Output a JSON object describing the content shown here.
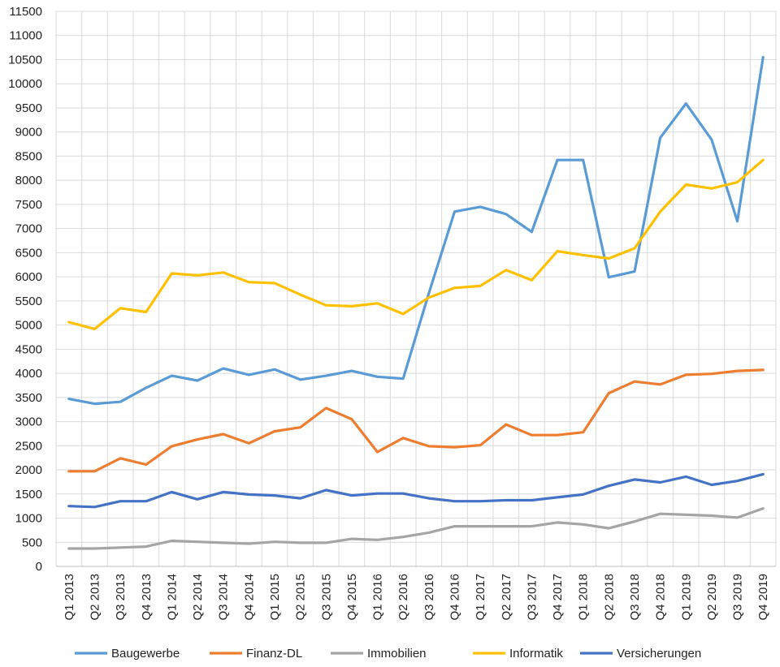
{
  "chart_data": {
    "type": "line",
    "title": "",
    "xlabel": "",
    "ylabel": "",
    "ylim": [
      0,
      11500
    ],
    "ytick_step": 500,
    "grid": true,
    "legend_position": "bottom",
    "categories": [
      "Q1 2013",
      "Q2 2013",
      "Q3 2013",
      "Q4 2013",
      "Q1 2014",
      "Q2 2014",
      "Q3 2014",
      "Q4 2014",
      "Q1 2015",
      "Q2 2015",
      "Q3 2015",
      "Q4 2015",
      "Q1 2016",
      "Q2 2016",
      "Q3 2016",
      "Q4 2016",
      "Q1 2017",
      "Q2 2017",
      "Q3 2017",
      "Q4 2017",
      "Q1 2018",
      "Q2 2018",
      "Q3 2018",
      "Q4 2018",
      "Q1 2019",
      "Q2 2019",
      "Q3 2019",
      "Q4 2019"
    ],
    "series": [
      {
        "name": "Baugewerbe",
        "color": "#5b9bd5",
        "values": [
          3470,
          3370,
          3410,
          3700,
          3950,
          3850,
          4100,
          3970,
          4080,
          3870,
          3950,
          4050,
          3930,
          3890,
          5660,
          7350,
          7450,
          7300,
          6930,
          8420,
          8420,
          5990,
          6110,
          8880,
          9590,
          8840,
          7150,
          10550
        ]
      },
      {
        "name": "Finanz-DL",
        "color": "#ed7d31",
        "values": [
          1970,
          1970,
          2240,
          2110,
          2490,
          2630,
          2740,
          2550,
          2800,
          2880,
          3280,
          3050,
          2370,
          2660,
          2490,
          2470,
          2510,
          2940,
          2720,
          2720,
          2780,
          3590,
          3830,
          3770,
          3970,
          3990,
          4050,
          4070
        ]
      },
      {
        "name": "Immobilien",
        "color": "#a5a5a5",
        "values": [
          370,
          370,
          390,
          410,
          530,
          510,
          490,
          470,
          510,
          490,
          490,
          570,
          550,
          610,
          700,
          830,
          830,
          830,
          830,
          910,
          870,
          790,
          930,
          1090,
          1070,
          1050,
          1010,
          1200
        ]
      },
      {
        "name": "Informatik",
        "color": "#ffc000",
        "values": [
          5060,
          4920,
          5350,
          5270,
          6070,
          6030,
          6090,
          5890,
          5870,
          5630,
          5410,
          5390,
          5450,
          5230,
          5570,
          5770,
          5810,
          6140,
          5930,
          6530,
          6450,
          6380,
          6590,
          7350,
          7910,
          7830,
          7960,
          8420
        ]
      },
      {
        "name": "Versicherungen",
        "color": "#4472c4",
        "values": [
          1250,
          1230,
          1350,
          1350,
          1540,
          1390,
          1540,
          1490,
          1470,
          1410,
          1580,
          1470,
          1510,
          1510,
          1410,
          1350,
          1350,
          1370,
          1370,
          1430,
          1490,
          1670,
          1800,
          1740,
          1860,
          1690,
          1770,
          1910
        ]
      }
    ]
  }
}
